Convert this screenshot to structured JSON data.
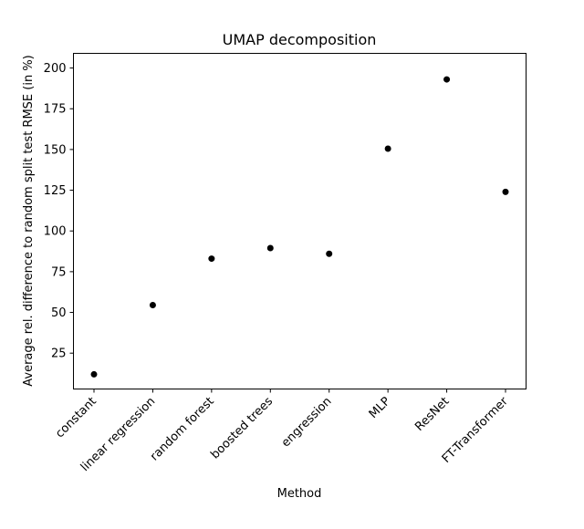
{
  "chart_data": {
    "type": "scatter",
    "title": "UMAP decomposition",
    "xlabel": "Method",
    "ylabel": "Average rel. difference to random split test RMSE (in %)",
    "categories": [
      "constant",
      "linear regression",
      "random forest",
      "boosted trees",
      "engression",
      "MLP",
      "ResNet",
      "FT-Transformer"
    ],
    "values": [
      12,
      54.5,
      83,
      89.5,
      86,
      150.5,
      193,
      124
    ],
    "yticks": [
      25,
      50,
      75,
      100,
      125,
      150,
      175,
      200
    ],
    "ylim": [
      3,
      209
    ],
    "grid": false,
    "marker_color": "#000000"
  }
}
